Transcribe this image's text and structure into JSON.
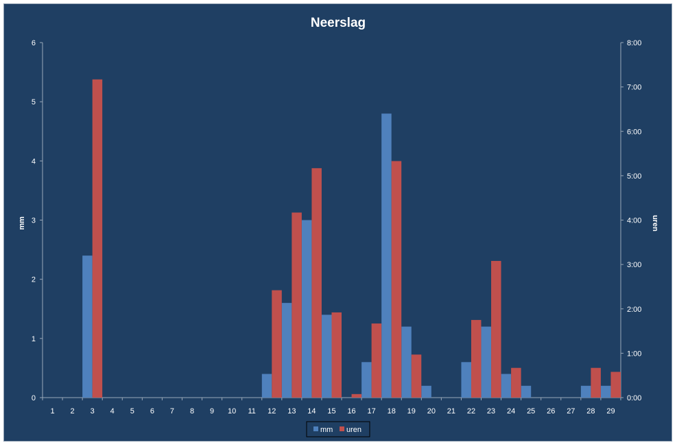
{
  "chart_data": {
    "type": "bar",
    "title": "Neerslag",
    "ylabel": "mm",
    "y2label": "uren",
    "ylim": [
      0,
      6
    ],
    "y2lim": [
      0,
      8
    ],
    "y_ticks": [
      "0",
      "1",
      "2",
      "3",
      "4",
      "5",
      "6"
    ],
    "y2_ticks": [
      "0:00",
      "1:00",
      "2:00",
      "3:00",
      "4:00",
      "5:00",
      "6:00",
      "7:00",
      "8:00"
    ],
    "categories": [
      "1",
      "2",
      "3",
      "4",
      "5",
      "6",
      "7",
      "8",
      "9",
      "10",
      "11",
      "12",
      "13",
      "14",
      "15",
      "16",
      "17",
      "18",
      "19",
      "20",
      "21",
      "22",
      "23",
      "24",
      "25",
      "26",
      "27",
      "28",
      "29"
    ],
    "series": [
      {
        "name": "mm",
        "axis": "left",
        "color": "#4f81bd",
        "values": [
          0,
          0,
          2.4,
          0,
          0,
          0,
          0,
          0,
          0,
          0,
          0,
          0.4,
          1.6,
          3.0,
          1.4,
          0,
          0.6,
          4.8,
          1.2,
          0.2,
          0,
          0.6,
          1.2,
          0.4,
          0.2,
          0,
          0,
          0.2,
          0.2
        ]
      },
      {
        "name": "uren",
        "axis": "right",
        "color": "#c0504d",
        "values": [
          0,
          0,
          7.17,
          0,
          0,
          0,
          0,
          0,
          0,
          0,
          0,
          2.42,
          4.17,
          5.17,
          1.92,
          0.08,
          1.67,
          5.33,
          0.97,
          0,
          0,
          1.75,
          3.08,
          0.67,
          0,
          0,
          0,
          0.67,
          0.58
        ]
      }
    ],
    "legend_position": "bottom",
    "grid": false
  }
}
